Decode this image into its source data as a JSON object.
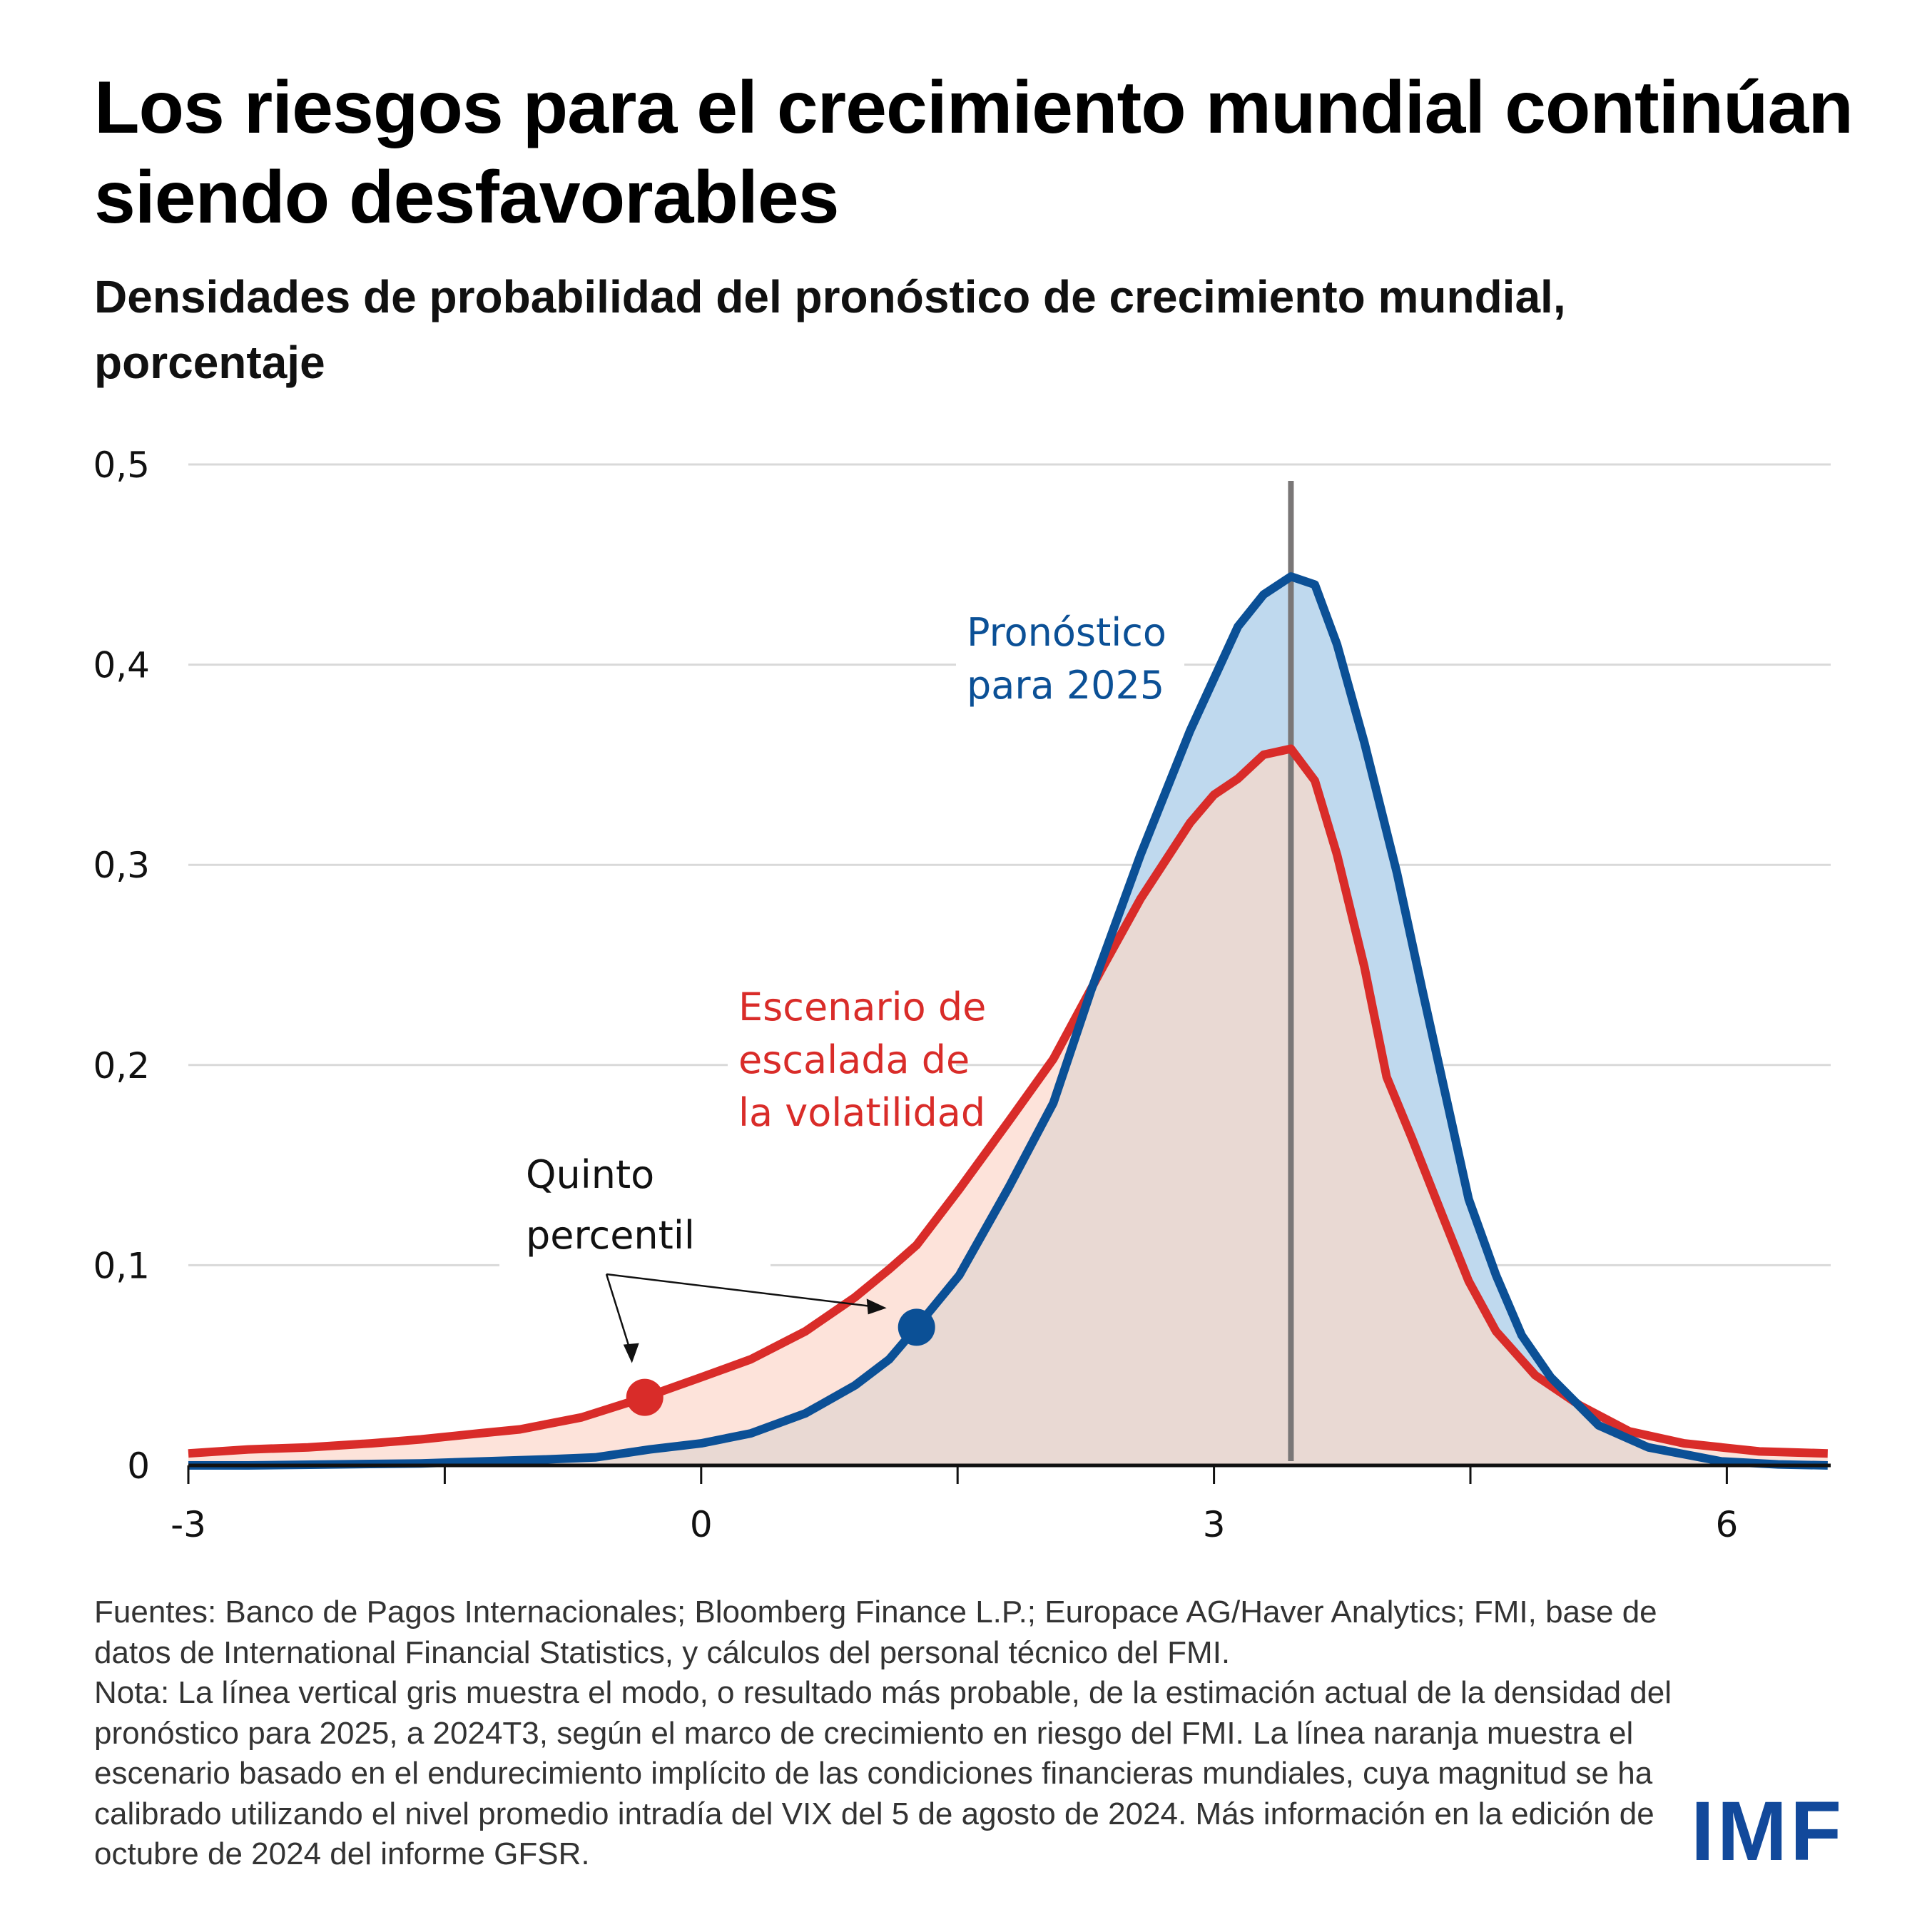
{
  "header": {
    "title": "Los riesgos para el crecimiento mundial continúan siendo desfavorables",
    "subtitle": "Densidades de probabilidad del pronóstico de crecimiento mundial, porcentaje"
  },
  "colors": {
    "forecast_line": "#0b5096",
    "forecast_fill": "#bfd9ee",
    "scenario_line": "#d92c29",
    "scenario_fill": "#fde3da",
    "overlap_fill": "#e9d9d3",
    "mode_line": "#7a7777",
    "gridline": "#d9d9d9",
    "logo": "#12499b"
  },
  "chart_data": {
    "type": "area",
    "title": "Densidades de probabilidad del pronóstico de crecimiento mundial, porcentaje",
    "xlabel": "",
    "ylabel": "",
    "xlim": [
      -3,
      6.59
    ],
    "ylim": [
      0,
      0.5
    ],
    "grid": true,
    "x_ticks": [
      -3,
      -1.5,
      0,
      1.5,
      3,
      4.5,
      6
    ],
    "x_tick_labels": [
      "-3",
      "0",
      "3",
      "6"
    ],
    "x_tick_label_values": [
      -3,
      0,
      3,
      6
    ],
    "y_ticks": [
      0,
      0.1,
      0.2,
      0.3,
      0.4,
      0.5
    ],
    "y_tick_labels": [
      "0",
      "0,1",
      "0,2",
      "0,3",
      "0,4",
      "0,5"
    ],
    "series": [
      {
        "name": "Pronóstico para 2025",
        "color": "#0b5096",
        "x": [
          -3,
          -2.65,
          -1.64,
          -0.91,
          -0.62,
          -0.3,
          0,
          0.29,
          0.61,
          0.9,
          1.1,
          1.26,
          1.51,
          1.8,
          2.06,
          2.28,
          2.57,
          2.86,
          3.14,
          3.29,
          3.45,
          3.59,
          3.72,
          3.88,
          4.07,
          4.22,
          4.49,
          4.65,
          4.8,
          4.97,
          5.25,
          5.54,
          5.97,
          6.3,
          6.59
        ],
        "y": [
          0.0,
          0.0,
          0.001,
          0.003,
          0.004,
          0.008,
          0.011,
          0.016,
          0.026,
          0.04,
          0.053,
          0.069,
          0.095,
          0.139,
          0.181,
          0.237,
          0.305,
          0.367,
          0.419,
          0.435,
          0.444,
          0.44,
          0.41,
          0.361,
          0.296,
          0.237,
          0.133,
          0.095,
          0.065,
          0.044,
          0.02,
          0.009,
          0.002,
          0.0005,
          0.0
        ]
      },
      {
        "name": "Escenario de escalada de la volatilidad",
        "color": "#d92c29",
        "x": [
          -3,
          -2.65,
          -2.3,
          -1.93,
          -1.64,
          -1.3,
          -1.06,
          -0.7,
          -0.33,
          0,
          0.29,
          0.61,
          0.9,
          1.1,
          1.26,
          1.51,
          1.8,
          2.06,
          2.35,
          2.57,
          2.86,
          3.0,
          3.14,
          3.29,
          3.45,
          3.59,
          3.72,
          3.88,
          4.01,
          4.16,
          4.34,
          4.49,
          4.65,
          4.88,
          5.14,
          5.43,
          5.75,
          6.19,
          6.59
        ],
        "y": [
          0.006,
          0.008,
          0.009,
          0.011,
          0.013,
          0.016,
          0.018,
          0.024,
          0.034,
          0.044,
          0.053,
          0.067,
          0.084,
          0.098,
          0.11,
          0.138,
          0.172,
          0.203,
          0.249,
          0.283,
          0.321,
          0.335,
          0.343,
          0.355,
          0.358,
          0.342,
          0.305,
          0.249,
          0.194,
          0.163,
          0.124,
          0.092,
          0.067,
          0.045,
          0.03,
          0.017,
          0.011,
          0.007,
          0.006
        ]
      }
    ],
    "mode_line": {
      "x": 3.45,
      "label": "modo"
    },
    "percentile_markers": [
      {
        "series": "Escenario de escalada de la volatilidad",
        "x": -0.33,
        "y": 0.034,
        "color": "#d92c29"
      },
      {
        "series": "Pronóstico para 2025",
        "x": 1.26,
        "y": 0.069,
        "color": "#0b5096"
      }
    ],
    "annotations": {
      "forecast_label": [
        "Pronóstico",
        "para 2025"
      ],
      "scenario_label": [
        "Escenario de",
        "escalada de",
        "la volatilidad"
      ],
      "percentile_label": [
        "Quinto",
        "percentil"
      ]
    }
  },
  "footer": {
    "sources": "Fuentes: Banco de Pagos Internacionales; Bloomberg Finance L.P.; Europace AG/Haver Analytics; FMI, base de datos de International Financial Statistics, y cálculos del personal técnico del FMI.",
    "note": "Nota: La línea vertical gris muestra el modo, o resultado más probable, de la estimación actual de la densidad del pronóstico para 2025, a 2024T3, según el marco de crecimiento en riesgo del FMI. La línea naranja muestra el escenario basado en el endurecimiento implícito de las condiciones financieras mundiales, cuya magnitud se ha calibrado utilizando el nivel promedio intradía del VIX del 5 de agosto de 2024. Más información en la edición de octubre de 2024 del informe GFSR."
  },
  "logo": {
    "text": "IMF"
  }
}
